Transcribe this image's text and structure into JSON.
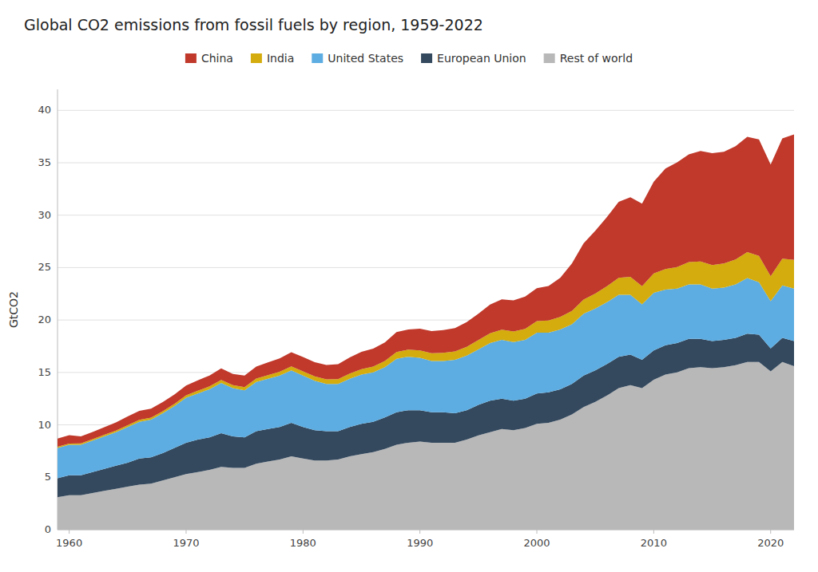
{
  "chart_data": {
    "type": "area",
    "stacked": true,
    "title": "Global CO2 emissions from fossil fuels by region, 1959-2022",
    "y_label": "GtCO2",
    "x": [
      1959,
      1960,
      1961,
      1962,
      1963,
      1964,
      1965,
      1966,
      1967,
      1968,
      1969,
      1970,
      1971,
      1972,
      1973,
      1974,
      1975,
      1976,
      1977,
      1978,
      1979,
      1980,
      1981,
      1982,
      1983,
      1984,
      1985,
      1986,
      1987,
      1988,
      1989,
      1990,
      1991,
      1992,
      1993,
      1994,
      1995,
      1996,
      1997,
      1998,
      1999,
      2000,
      2001,
      2002,
      2003,
      2004,
      2005,
      2006,
      2007,
      2008,
      2009,
      2010,
      2011,
      2012,
      2013,
      2014,
      2015,
      2016,
      2017,
      2018,
      2019,
      2020,
      2021,
      2022
    ],
    "series": [
      {
        "name": "Rest of world",
        "color": "#b8b8b8",
        "values": [
          3.1,
          3.3,
          3.3,
          3.5,
          3.7,
          3.9,
          4.1,
          4.3,
          4.4,
          4.7,
          5.0,
          5.3,
          5.5,
          5.7,
          6.0,
          5.9,
          5.9,
          6.3,
          6.5,
          6.7,
          7.0,
          6.8,
          6.6,
          6.6,
          6.7,
          7.0,
          7.2,
          7.4,
          7.7,
          8.1,
          8.3,
          8.4,
          8.3,
          8.3,
          8.3,
          8.6,
          9.0,
          9.3,
          9.6,
          9.5,
          9.7,
          10.1,
          10.2,
          10.5,
          11.0,
          11.7,
          12.2,
          12.8,
          13.5,
          13.8,
          13.5,
          14.3,
          14.8,
          15.0,
          15.4,
          15.5,
          15.4,
          15.5,
          15.7,
          16.0,
          16.0,
          15.1,
          16.0,
          15.6
        ]
      },
      {
        "name": "European Union",
        "color": "#34495e",
        "values": [
          1.8,
          1.9,
          1.9,
          2.0,
          2.1,
          2.2,
          2.3,
          2.5,
          2.5,
          2.6,
          2.8,
          3.0,
          3.1,
          3.1,
          3.2,
          3.0,
          2.9,
          3.1,
          3.1,
          3.1,
          3.2,
          3.0,
          2.9,
          2.8,
          2.7,
          2.8,
          2.9,
          2.9,
          3.0,
          3.1,
          3.1,
          3.0,
          2.9,
          2.9,
          2.8,
          2.8,
          2.9,
          3.0,
          2.9,
          2.8,
          2.8,
          2.9,
          2.9,
          2.9,
          2.9,
          3.0,
          3.0,
          3.0,
          3.0,
          2.9,
          2.7,
          2.8,
          2.8,
          2.8,
          2.8,
          2.7,
          2.6,
          2.6,
          2.6,
          2.7,
          2.6,
          2.2,
          2.3,
          2.4
        ]
      },
      {
        "name": "United States",
        "color": "#5dade2",
        "values": [
          2.9,
          2.9,
          2.9,
          3.0,
          3.1,
          3.2,
          3.4,
          3.5,
          3.6,
          3.8,
          4.0,
          4.3,
          4.4,
          4.6,
          4.8,
          4.6,
          4.5,
          4.7,
          4.8,
          4.9,
          5.0,
          4.9,
          4.7,
          4.5,
          4.5,
          4.6,
          4.7,
          4.7,
          4.8,
          5.1,
          5.1,
          5.0,
          4.9,
          4.9,
          5.1,
          5.2,
          5.3,
          5.5,
          5.6,
          5.6,
          5.6,
          5.8,
          5.7,
          5.7,
          5.7,
          5.9,
          5.9,
          5.9,
          5.9,
          5.7,
          5.3,
          5.5,
          5.3,
          5.2,
          5.2,
          5.2,
          5.0,
          5.0,
          5.1,
          5.3,
          5.0,
          4.5,
          5.0,
          5.0
        ]
      },
      {
        "name": "India",
        "color": "#d4ac0d",
        "values": [
          0.12,
          0.12,
          0.13,
          0.14,
          0.15,
          0.16,
          0.17,
          0.18,
          0.19,
          0.2,
          0.21,
          0.23,
          0.25,
          0.27,
          0.28,
          0.29,
          0.3,
          0.32,
          0.34,
          0.36,
          0.38,
          0.4,
          0.42,
          0.44,
          0.46,
          0.49,
          0.52,
          0.56,
          0.6,
          0.65,
          0.68,
          0.71,
          0.74,
          0.77,
          0.8,
          0.84,
          0.89,
          0.94,
          0.98,
          1.01,
          1.05,
          1.1,
          1.15,
          1.2,
          1.27,
          1.35,
          1.43,
          1.52,
          1.62,
          1.72,
          1.72,
          1.85,
          1.97,
          2.05,
          2.13,
          2.19,
          2.25,
          2.3,
          2.38,
          2.47,
          2.52,
          2.37,
          2.55,
          2.74
        ]
      },
      {
        "name": "China",
        "color": "#c0392b",
        "values": [
          0.78,
          0.79,
          0.67,
          0.69,
          0.73,
          0.78,
          0.83,
          0.86,
          0.86,
          0.88,
          0.88,
          0.92,
          1.0,
          1.04,
          1.1,
          1.07,
          1.11,
          1.14,
          1.21,
          1.28,
          1.34,
          1.38,
          1.36,
          1.38,
          1.43,
          1.54,
          1.64,
          1.72,
          1.76,
          1.9,
          1.91,
          2.07,
          2.1,
          2.18,
          2.24,
          2.36,
          2.52,
          2.73,
          2.89,
          2.97,
          3.08,
          3.14,
          3.3,
          3.72,
          4.53,
          5.36,
          5.99,
          6.61,
          7.25,
          7.58,
          7.89,
          8.75,
          9.57,
          9.98,
          10.27,
          10.53,
          10.67,
          10.65,
          10.8,
          11.0,
          11.1,
          10.66,
          11.47,
          11.97
        ]
      }
    ],
    "xlim": [
      1959,
      2022
    ],
    "xticks": [
      1960,
      1970,
      1980,
      1990,
      2000,
      2010,
      2020
    ],
    "ylim": [
      0,
      42
    ],
    "yticks": [
      0,
      5,
      10,
      15,
      20,
      25,
      30,
      35,
      40
    ],
    "grid": true,
    "legend": "top"
  }
}
